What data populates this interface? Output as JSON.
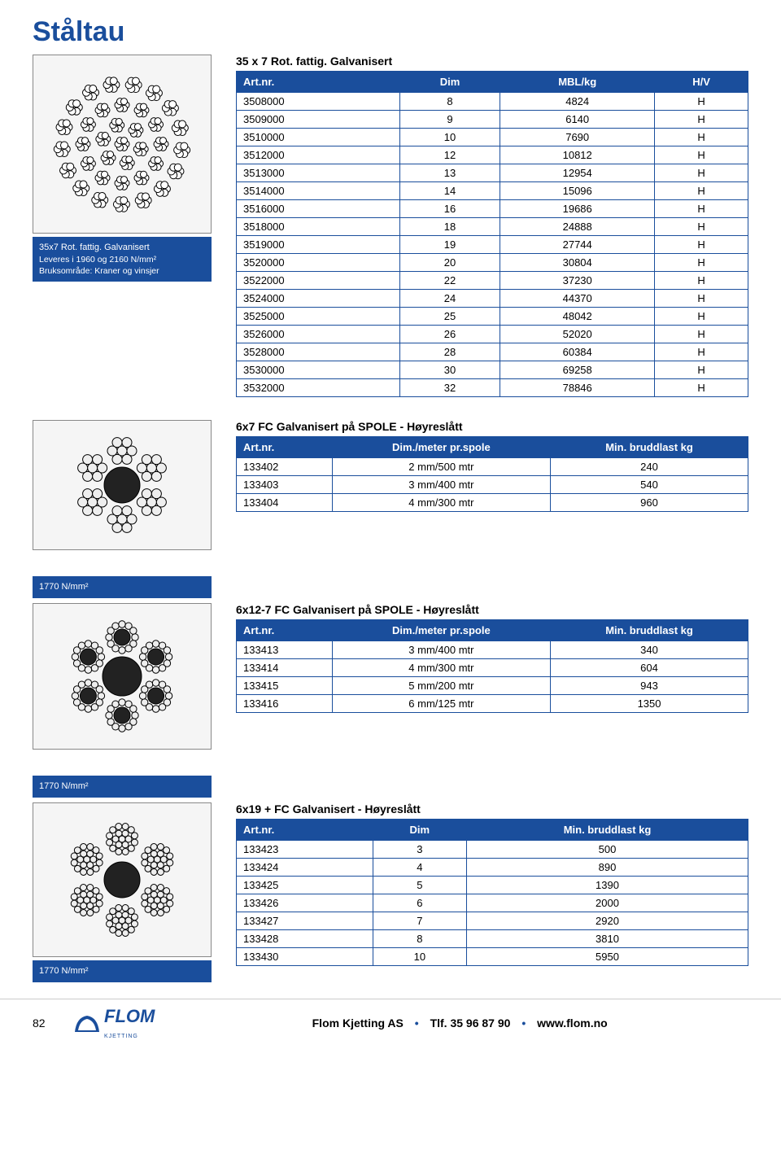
{
  "colors": {
    "brand_blue": "#1a4e9c",
    "white": "#ffffff",
    "border_grey": "#888888",
    "bg_grey": "#f5f5f5",
    "text": "#000000"
  },
  "page_title": "Ståltau",
  "page_number": "82",
  "footer": {
    "company": "Flom Kjetting AS",
    "phone_label": "Tlf. 35 96 87 90",
    "url": "www.flom.no",
    "logo_text": "FLOM",
    "logo_sub": "KJETTING"
  },
  "section1": {
    "heading": "35 x 7 Rot. fattig. Galvanisert",
    "caption_line1": "35x7 Rot. fattig. Galvanisert",
    "caption_line2": "Leveres i 1960 og 2160 N/mm²",
    "caption_line3": "Bruksområde: Kraner og vinsjer",
    "columns": [
      "Art.nr.",
      "Dim",
      "MBL/kg",
      "H/V"
    ],
    "rows": [
      [
        "3508000",
        "8",
        "4824",
        "H"
      ],
      [
        "3509000",
        "9",
        "6140",
        "H"
      ],
      [
        "3510000",
        "10",
        "7690",
        "H"
      ],
      [
        "3512000",
        "12",
        "10812",
        "H"
      ],
      [
        "3513000",
        "13",
        "12954",
        "H"
      ],
      [
        "3514000",
        "14",
        "15096",
        "H"
      ],
      [
        "3516000",
        "16",
        "19686",
        "H"
      ],
      [
        "3518000",
        "18",
        "24888",
        "H"
      ],
      [
        "3519000",
        "19",
        "27744",
        "H"
      ],
      [
        "3520000",
        "20",
        "30804",
        "H"
      ],
      [
        "3522000",
        "22",
        "37230",
        "H"
      ],
      [
        "3524000",
        "24",
        "44370",
        "H"
      ],
      [
        "3525000",
        "25",
        "48042",
        "H"
      ],
      [
        "3526000",
        "26",
        "52020",
        "H"
      ],
      [
        "3528000",
        "28",
        "60384",
        "H"
      ],
      [
        "3530000",
        "30",
        "69258",
        "H"
      ],
      [
        "3532000",
        "32",
        "78846",
        "H"
      ]
    ]
  },
  "section2": {
    "heading": "6x7 FC Galvanisert på SPOLE - Høyreslått",
    "columns": [
      "Art.nr.",
      "Dim./meter pr.spole",
      "Min. bruddlast kg"
    ],
    "rows": [
      [
        "133402",
        "2 mm/500 mtr",
        "240"
      ],
      [
        "133403",
        "3 mm/400 mtr",
        "540"
      ],
      [
        "133404",
        "4 mm/300 mtr",
        "960"
      ]
    ]
  },
  "section3": {
    "caption": "1770 N/mm²",
    "heading": "6x12-7 FC Galvanisert på SPOLE - Høyreslått",
    "columns": [
      "Art.nr.",
      "Dim./meter pr.spole",
      "Min. bruddlast kg"
    ],
    "rows": [
      [
        "133413",
        "3 mm/400 mtr",
        "340"
      ],
      [
        "133414",
        "4 mm/300 mtr",
        "604"
      ],
      [
        "133415",
        "5 mm/200 mtr",
        "943"
      ],
      [
        "133416",
        "6 mm/125 mtr",
        "1350"
      ]
    ]
  },
  "section4": {
    "caption": "1770 N/mm²",
    "heading": "6x19 + FC Galvanisert - Høyreslått",
    "columns": [
      "Art.nr.",
      "Dim",
      "Min. bruddlast kg"
    ],
    "rows": [
      [
        "133423",
        "3",
        "500"
      ],
      [
        "133424",
        "4",
        "890"
      ],
      [
        "133425",
        "5",
        "1390"
      ],
      [
        "133426",
        "6",
        "2000"
      ],
      [
        "133427",
        "7",
        "2920"
      ],
      [
        "133428",
        "8",
        "3810"
      ],
      [
        "133430",
        "10",
        "5950"
      ]
    ],
    "caption2": "1770 N/mm²"
  }
}
